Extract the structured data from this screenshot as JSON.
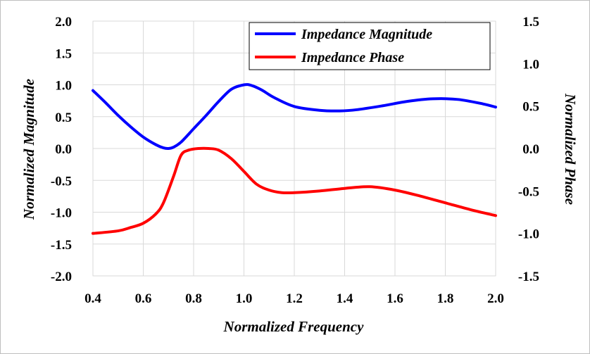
{
  "chart_data": {
    "type": "line",
    "title": "",
    "xlabel": "Normalized Frequency",
    "ylabel": "Normalized Magnitude",
    "y2label": "Normalized Phase",
    "xlim": [
      0.4,
      2.0
    ],
    "ylim": [
      -2.0,
      2.0
    ],
    "y2lim": [
      -1.5,
      1.5
    ],
    "grid": true,
    "legend_position": "top-right",
    "x_ticks": [
      "0.4",
      "0.6",
      "0.8",
      "1.0",
      "1.2",
      "1.4",
      "1.6",
      "1.8",
      "2.0"
    ],
    "y_ticks": [
      "2.0",
      "1.5",
      "1.0",
      "0.5",
      "0.0",
      "-0.5",
      "-1.0",
      "-1.5",
      "-2.0"
    ],
    "y2_ticks": [
      "1.5",
      "1.0",
      "0.5",
      "0.0",
      "-0.5",
      "-1.0",
      "-1.5"
    ],
    "series": [
      {
        "name": "Impedance Magnitude",
        "color": "#0000ff",
        "axis": "left",
        "x": [
          0.4,
          0.45,
          0.5,
          0.55,
          0.6,
          0.65,
          0.68,
          0.7,
          0.72,
          0.75,
          0.8,
          0.85,
          0.9,
          0.95,
          1.0,
          1.03,
          1.07,
          1.12,
          1.2,
          1.3,
          1.38,
          1.45,
          1.55,
          1.65,
          1.75,
          1.85,
          1.95,
          2.0
        ],
        "y": [
          0.91,
          0.72,
          0.52,
          0.34,
          0.18,
          0.06,
          0.01,
          0.0,
          0.02,
          0.1,
          0.31,
          0.52,
          0.74,
          0.93,
          1.0,
          0.99,
          0.92,
          0.8,
          0.66,
          0.6,
          0.59,
          0.61,
          0.67,
          0.74,
          0.78,
          0.77,
          0.7,
          0.65
        ]
      },
      {
        "name": "Impedance Phase",
        "color": "#ff0000",
        "axis": "right",
        "x": [
          0.4,
          0.5,
          0.55,
          0.6,
          0.65,
          0.68,
          0.72,
          0.75,
          0.78,
          0.82,
          0.86,
          0.9,
          0.95,
          1.0,
          1.05,
          1.1,
          1.15,
          1.2,
          1.3,
          1.4,
          1.5,
          1.6,
          1.7,
          1.8,
          1.9,
          2.0
        ],
        "y": [
          -1.0,
          -0.97,
          -0.93,
          -0.88,
          -0.77,
          -0.64,
          -0.33,
          -0.08,
          -0.02,
          0.0,
          0.0,
          -0.02,
          -0.12,
          -0.27,
          -0.42,
          -0.49,
          -0.52,
          -0.52,
          -0.5,
          -0.47,
          -0.45,
          -0.49,
          -0.56,
          -0.64,
          -0.72,
          -0.79
        ]
      }
    ]
  }
}
